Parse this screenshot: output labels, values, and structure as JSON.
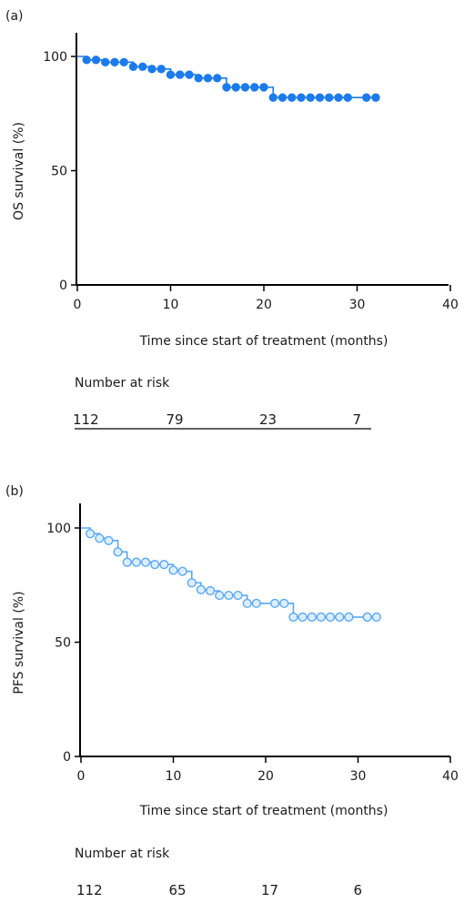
{
  "chart_data": [
    {
      "type": "line",
      "panel_label": "(a)",
      "xlabel": "Time since start of treatment (months)",
      "ylabel": "OS survival (%)",
      "xlim": [
        0,
        40
      ],
      "ylim": [
        0,
        100
      ],
      "x_ticks": [
        "0",
        "10",
        "20",
        "30",
        "40"
      ],
      "y_ticks": [
        "0",
        "50",
        "100"
      ],
      "grid": false,
      "marker": "filled-circle",
      "color": "#1c7bea",
      "series": [
        {
          "x": [
            0,
            1,
            2,
            3,
            4,
            5,
            6,
            7,
            8,
            9,
            10,
            11,
            12,
            13,
            14,
            15,
            16,
            17,
            18,
            19,
            20,
            21,
            22,
            23,
            24,
            25,
            26,
            27,
            28,
            29,
            31,
            32
          ],
          "y": [
            100,
            98.5,
            98.5,
            97.5,
            97.5,
            97.5,
            95.5,
            95.5,
            94.5,
            94.5,
            92,
            92,
            92,
            90.5,
            90.5,
            90.5,
            86.5,
            86.5,
            86.5,
            86.5,
            86.5,
            82,
            82,
            82,
            82,
            82,
            82,
            82,
            82,
            82,
            82,
            82
          ],
          "marked": [
            false,
            true,
            true,
            true,
            true,
            true,
            true,
            true,
            true,
            true,
            true,
            true,
            true,
            true,
            true,
            true,
            true,
            true,
            true,
            true,
            true,
            true,
            true,
            true,
            true,
            true,
            true,
            true,
            true,
            true,
            true,
            true
          ]
        }
      ],
      "risk_title": "Number at risk",
      "risk_values": [
        "112",
        "79",
        "23",
        "7"
      ],
      "risk_x": [
        0,
        10,
        20,
        30
      ]
    },
    {
      "type": "line",
      "panel_label": "(b)",
      "xlabel": "Time since start of treatment (months)",
      "ylabel": "PFS survival (%)",
      "xlim": [
        0,
        40
      ],
      "ylim": [
        0,
        100
      ],
      "x_ticks": [
        "0",
        "10",
        "20",
        "30",
        "40"
      ],
      "y_ticks": [
        "0",
        "50",
        "100"
      ],
      "grid": false,
      "marker": "open-circle",
      "color": "#5aa8f2",
      "series": [
        {
          "x": [
            0,
            1,
            2,
            3,
            4,
            5,
            6,
            7,
            8,
            9,
            10,
            11,
            12,
            13,
            14,
            15,
            16,
            17,
            18,
            19,
            21,
            22,
            23,
            24,
            25,
            26,
            27,
            28,
            29,
            31,
            32
          ],
          "y": [
            100,
            97.5,
            95.5,
            94.5,
            89.5,
            85,
            85,
            85,
            84,
            84,
            81.5,
            81,
            76,
            73,
            72.5,
            70.5,
            70.5,
            70.5,
            67,
            67,
            67,
            67,
            61,
            61,
            61,
            61,
            61,
            61,
            61,
            61,
            61
          ],
          "marked": [
            false,
            true,
            true,
            true,
            true,
            true,
            true,
            true,
            true,
            true,
            true,
            true,
            true,
            true,
            true,
            true,
            true,
            true,
            true,
            true,
            true,
            true,
            true,
            true,
            true,
            true,
            true,
            true,
            true,
            true,
            true
          ]
        }
      ],
      "risk_title": "Number at risk",
      "risk_values": [
        "112",
        "65",
        "17",
        "6"
      ],
      "risk_x": [
        0,
        10,
        20,
        30
      ]
    }
  ]
}
